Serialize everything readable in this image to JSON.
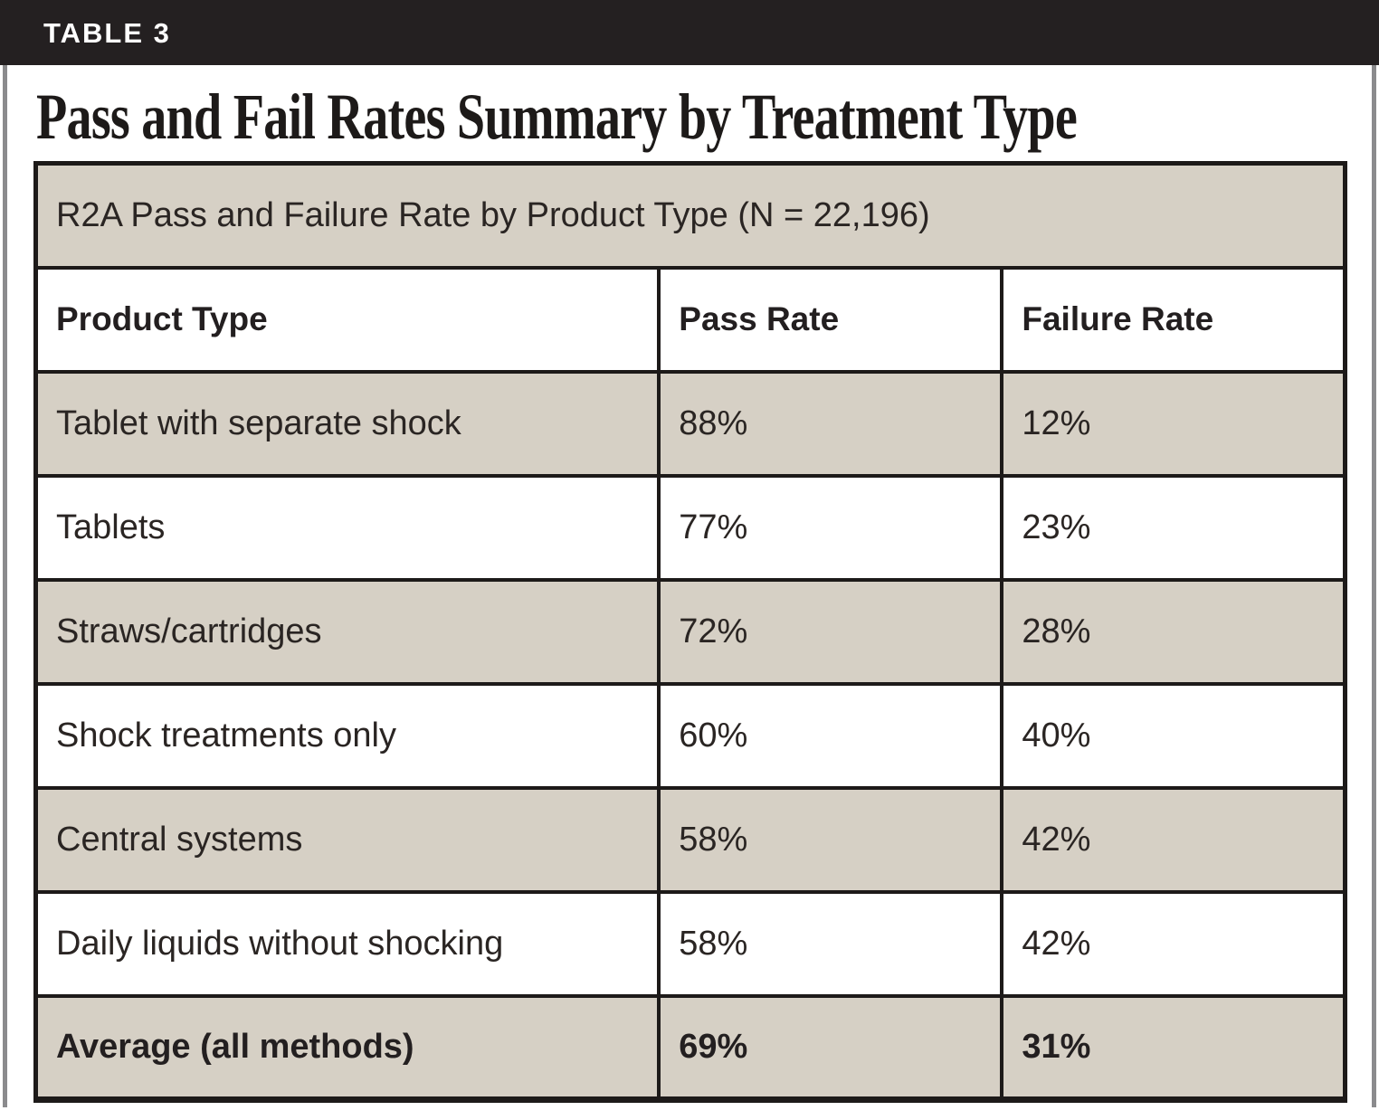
{
  "kicker": "TABLE 3",
  "title": "Pass and Fail Rates Summary by Treatment Type",
  "colors": {
    "kicker_bar": "#242021",
    "row_shade_tan": "#d6d0c5",
    "table_border": "#1d1a19",
    "page_edge_gray": "#8b8b8d",
    "text": "#231f20"
  },
  "table": {
    "caption": "R2A Pass and Failure Rate by Product Type (N = 22,196)",
    "columns": [
      "Product Type",
      "Pass Rate",
      "Failure Rate"
    ],
    "rows": [
      {
        "product_type": "Tablet with separate shock",
        "pass_rate": "88%",
        "failure_rate": "12%"
      },
      {
        "product_type": "Tablets",
        "pass_rate": "77%",
        "failure_rate": "23%"
      },
      {
        "product_type": "Straws/cartridges",
        "pass_rate": "72%",
        "failure_rate": "28%"
      },
      {
        "product_type": "Shock treatments only",
        "pass_rate": "60%",
        "failure_rate": "40%"
      },
      {
        "product_type": "Central systems",
        "pass_rate": "58%",
        "failure_rate": "42%"
      },
      {
        "product_type": "Daily liquids without shocking",
        "pass_rate": "58%",
        "failure_rate": "42%"
      },
      {
        "product_type": "Average (all methods)",
        "pass_rate": "69%",
        "failure_rate": "31%"
      }
    ]
  }
}
